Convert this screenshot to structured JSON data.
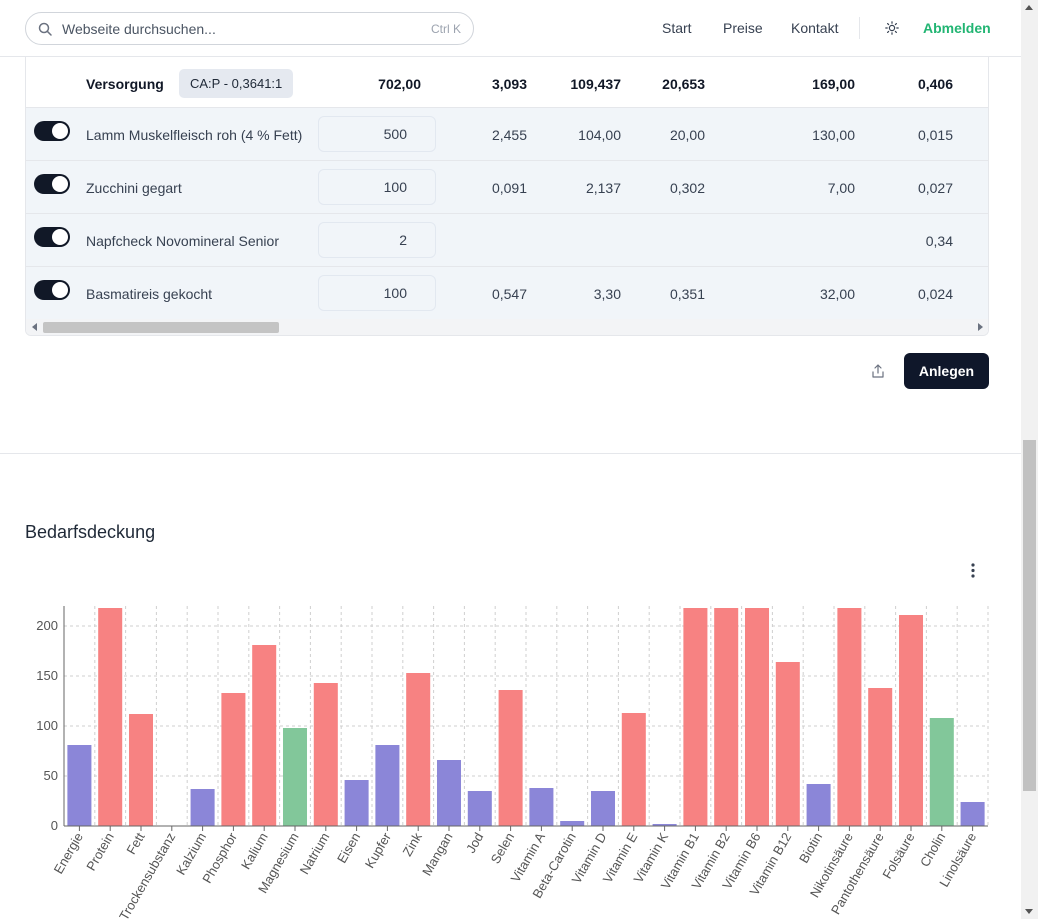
{
  "search": {
    "placeholder": "Webseite durchsuchen...",
    "shortcut": "Ctrl K"
  },
  "nav": {
    "start": "Start",
    "prices": "Preise",
    "contact": "Kontakt",
    "logout": "Abmelden",
    "logout_color": "#22b573"
  },
  "table": {
    "header": {
      "label": "Versorgung",
      "badge": "CA:P - 0,3641:1",
      "values": [
        "702,00",
        "3,093",
        "109,437",
        "20,653",
        "169,00",
        "0,406"
      ]
    },
    "rows": [
      {
        "name": "Lamm Muskelfleisch roh (4 % Fett)",
        "enabled": true,
        "amount": "500",
        "values": [
          "2,455",
          "104,00",
          "20,00",
          "130,00",
          "0,015"
        ]
      },
      {
        "name": "Zucchini gegart",
        "enabled": true,
        "amount": "100",
        "values": [
          "0,091",
          "2,137",
          "0,302",
          "7,00",
          "0,027"
        ]
      },
      {
        "name": "Napfcheck Novomineral Senior",
        "enabled": true,
        "amount": "2",
        "values": [
          "",
          "",
          "",
          "",
          "0,34"
        ]
      },
      {
        "name": "Basmatireis gekocht",
        "enabled": true,
        "amount": "100",
        "values": [
          "0,547",
          "3,30",
          "0,351",
          "32,00",
          "0,024"
        ]
      }
    ]
  },
  "actions": {
    "create": "Anlegen",
    "share_icon": "share-icon"
  },
  "section": {
    "title": "Bedarfsdeckung",
    "menu_icon": "kebab-menu-icon"
  },
  "chart_data": {
    "type": "bar",
    "title": "",
    "xlabel": "",
    "ylabel": "",
    "ylim": [
      0,
      220
    ],
    "yticks": [
      0,
      50,
      100,
      150,
      200
    ],
    "grid": true,
    "colors": {
      "low": "#8b86d8",
      "ok": "#82c79a",
      "high": "#f78282"
    },
    "categories": [
      "Energie",
      "Protein",
      "Fett",
      "Trockensubstanz",
      "Kalzium",
      "Phosphor",
      "Kalium",
      "Magnesium",
      "Natrium",
      "Eisen",
      "Kupfer",
      "Zink",
      "Mangan",
      "Jod",
      "Selen",
      "Vitamin A",
      "Beta-Carotin",
      "Vitamin D",
      "Vitamin E",
      "Vitamin K",
      "Vitamin B1",
      "Vitamin B2",
      "Vitamin B6",
      "Vitamin B12",
      "Biotin",
      "Nikotinsäure",
      "Pantothensäure",
      "Folsäure",
      "Cholin",
      "Linolsäure"
    ],
    "values": [
      81,
      218,
      112,
      0,
      37,
      133,
      181,
      98,
      143,
      46,
      81,
      153,
      66,
      35,
      136,
      38,
      5,
      35,
      113,
      2,
      218,
      218,
      218,
      164,
      42,
      218,
      138,
      211,
      108,
      24
    ],
    "status": [
      "low",
      "high",
      "high",
      "low",
      "low",
      "high",
      "high",
      "ok",
      "high",
      "low",
      "low",
      "high",
      "low",
      "low",
      "high",
      "low",
      "low",
      "low",
      "high",
      "low",
      "high",
      "high",
      "high",
      "high",
      "low",
      "high",
      "high",
      "high",
      "ok",
      "low"
    ]
  }
}
